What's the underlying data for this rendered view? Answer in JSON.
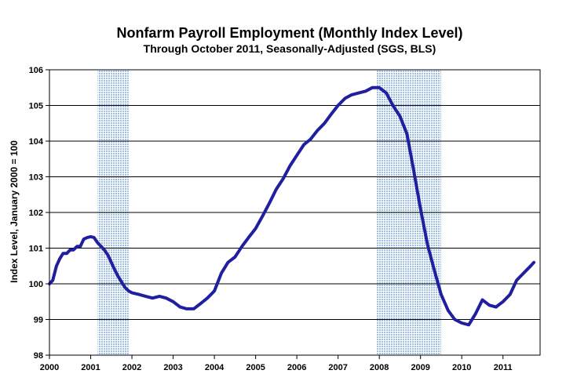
{
  "chart_data": {
    "type": "line",
    "title": "Nonfarm Payroll Employment (Monthly Index Level)",
    "subtitle": "Through October 2011, Seasonally-Adjusted (SGS, BLS)",
    "xlabel": "",
    "ylabel": "Index Level, January 2000 = 100",
    "xlim": [
      2000,
      2011.9
    ],
    "ylim": [
      98,
      106
    ],
    "x_ticks": [
      "2000",
      "2001",
      "2002",
      "2003",
      "2004",
      "2005",
      "2006",
      "2007",
      "2008",
      "2009",
      "2010",
      "2011"
    ],
    "y_ticks": [
      "98",
      "99",
      "100",
      "101",
      "102",
      "103",
      "104",
      "105",
      "106"
    ],
    "grid": true,
    "legend": "none",
    "recession_shading": [
      [
        2001.17,
        2001.92
      ],
      [
        2007.92,
        2009.5
      ]
    ],
    "colors": {
      "line": "#1f1fa0",
      "recession": "#b9d1ec",
      "grid": "#000000"
    },
    "series": [
      {
        "x": [
          2000.0,
          2000.08,
          2000.17,
          2000.25,
          2000.33,
          2000.42,
          2000.5,
          2000.58,
          2000.67,
          2000.75,
          2000.83,
          2000.92,
          2001.0,
          2001.08,
          2001.17,
          2001.25,
          2001.33,
          2001.42,
          2001.5,
          2001.58,
          2001.67,
          2001.75,
          2001.83,
          2001.92,
          2002.0,
          2002.17,
          2002.33,
          2002.5,
          2002.67,
          2002.83,
          2003.0,
          2003.17,
          2003.33,
          2003.5,
          2003.67,
          2003.83,
          2004.0,
          2004.17,
          2004.33,
          2004.5,
          2004.67,
          2004.83,
          2005.0,
          2005.17,
          2005.33,
          2005.5,
          2005.67,
          2005.83,
          2006.0,
          2006.17,
          2006.33,
          2006.5,
          2006.67,
          2006.83,
          2007.0,
          2007.17,
          2007.33,
          2007.5,
          2007.67,
          2007.83,
          2008.0,
          2008.17,
          2008.33,
          2008.5,
          2008.67,
          2008.83,
          2009.0,
          2009.17,
          2009.33,
          2009.5,
          2009.67,
          2009.83,
          2010.0,
          2010.17,
          2010.33,
          2010.5,
          2010.67,
          2010.83,
          2011.0,
          2011.17,
          2011.33,
          2011.5,
          2011.67,
          2011.75
        ],
        "values": [
          100.0,
          100.1,
          100.5,
          100.7,
          100.85,
          100.85,
          100.95,
          100.95,
          101.05,
          101.05,
          101.25,
          101.3,
          101.32,
          101.3,
          101.15,
          101.05,
          100.95,
          100.8,
          100.6,
          100.4,
          100.2,
          100.05,
          99.9,
          99.8,
          99.75,
          99.7,
          99.65,
          99.6,
          99.65,
          99.6,
          99.5,
          99.35,
          99.3,
          99.3,
          99.45,
          99.6,
          99.8,
          100.3,
          100.6,
          100.75,
          101.05,
          101.3,
          101.55,
          101.9,
          102.25,
          102.65,
          102.95,
          103.3,
          103.6,
          103.9,
          104.05,
          104.3,
          104.5,
          104.75,
          105.0,
          105.2,
          105.3,
          105.35,
          105.4,
          105.5,
          105.5,
          105.35,
          105.0,
          104.7,
          104.2,
          103.2,
          102.1,
          101.1,
          100.4,
          99.7,
          99.25,
          99.0,
          98.9,
          98.85,
          99.15,
          99.55,
          99.4,
          99.35,
          99.5,
          99.7,
          100.1,
          100.3,
          100.5,
          100.6
        ]
      }
    ]
  }
}
